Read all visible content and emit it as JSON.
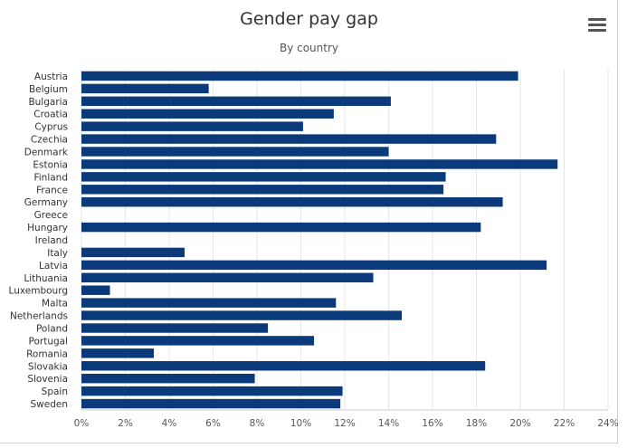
{
  "chart_data": {
    "type": "bar",
    "orientation": "horizontal",
    "title": "Gender pay gap",
    "subtitle": "By country",
    "categories": [
      "Austria",
      "Belgium",
      "Bulgaria",
      "Croatia",
      "Cyprus",
      "Czechia",
      "Denmark",
      "Estonia",
      "Finland",
      "France",
      "Germany",
      "Greece",
      "Hungary",
      "Ireland",
      "Italy",
      "Latvia",
      "Lithuania",
      "Luxembourg",
      "Malta",
      "Netherlands",
      "Poland",
      "Portugal",
      "Romania",
      "Slovakia",
      "Slovenia",
      "Spain",
      "Sweden"
    ],
    "values": [
      19.9,
      5.8,
      14.1,
      11.5,
      10.1,
      18.9,
      14.0,
      21.7,
      16.6,
      16.5,
      19.2,
      null,
      18.2,
      null,
      4.7,
      21.2,
      13.3,
      1.3,
      11.6,
      14.6,
      8.5,
      10.6,
      3.3,
      18.4,
      7.9,
      11.9,
      11.8
    ],
    "xlim": [
      0,
      24
    ],
    "xticks": [
      "0%",
      "2%",
      "4%",
      "6%",
      "8%",
      "10%",
      "12%",
      "14%",
      "16%",
      "18%",
      "20%",
      "22%",
      "24%"
    ],
    "grid": true,
    "color": "#0b3a7a"
  },
  "toolbar": {
    "menu_icon": "hamburger-menu-icon"
  }
}
